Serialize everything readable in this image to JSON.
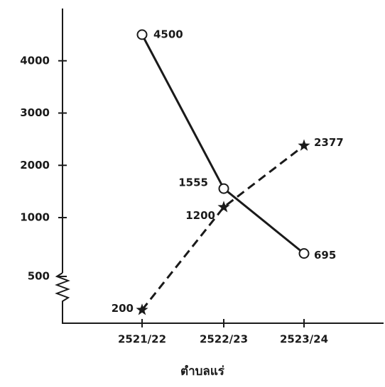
{
  "chart_data": {
    "type": "line",
    "x_label": "ตำบลแร่",
    "categories": [
      "2521/22",
      "2522/23",
      "2523/24"
    ],
    "series": [
      {
        "color": "#1a1a1a",
        "line": "solid",
        "marker": "circle",
        "values": [
          4500,
          1555,
          695
        ]
      },
      {
        "color": "#1a1a1a",
        "line": "dashed",
        "marker": "star",
        "values": [
          200,
          1200,
          2377
        ]
      }
    ],
    "ylim": [
      100,
      5000
    ],
    "ybreak": [
      500,
      1000
    ],
    "yticks": [
      500,
      1000,
      2000,
      3000,
      4000
    ],
    "grid": false
  }
}
